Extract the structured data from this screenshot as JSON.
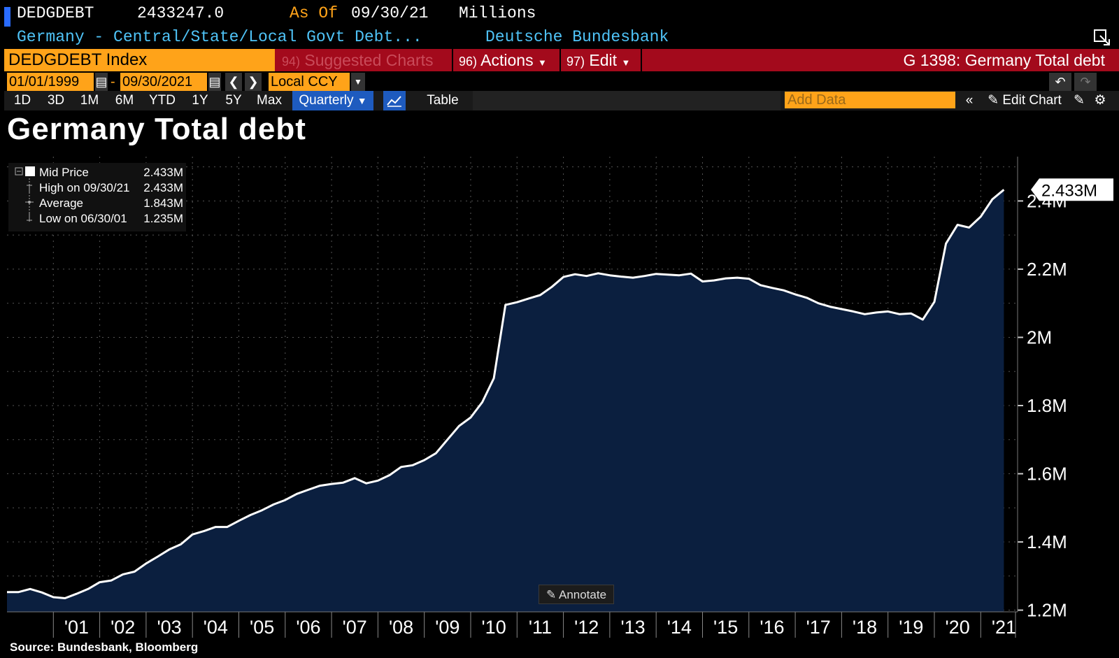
{
  "header": {
    "ticker": "DEDGDEBT",
    "last_value": "2433247.0",
    "as_of_label": "As Of",
    "as_of_date": "09/30/21",
    "units": "Millions",
    "description": "Germany - Central/State/Local Govt Debt...",
    "source_name": "Deutsche Bundesbank"
  },
  "toolbar": {
    "security": "DEDGDEBT Index",
    "suggested_num": "94)",
    "suggested_label": "Suggested Charts",
    "actions_num": "96)",
    "actions_label": "Actions",
    "edit_num": "97)",
    "edit_label": "Edit",
    "chart_id": "G 1398: Germany Total debt",
    "start_date": "01/01/1999",
    "end_date": "09/30/2021",
    "date_dash": "-",
    "currency": "Local CCY",
    "periods": [
      "1D",
      "3D",
      "1M",
      "6M",
      "YTD",
      "1Y",
      "5Y",
      "Max"
    ],
    "frequency": "Quarterly",
    "table_label": "Table",
    "add_data_placeholder": "Add Data",
    "edit_chart_label": "Edit Chart"
  },
  "colors": {
    "accent_orange": "#ffa319",
    "bar_red": "#a30a1c",
    "area_fill": "#0b1f3f",
    "line": "#ffffff",
    "header_cyan": "#4fc3f7"
  },
  "legend": {
    "rows": [
      {
        "label": "Mid Price",
        "value": "2.433M"
      },
      {
        "label": "High on 09/30/21",
        "value": "2.433M"
      },
      {
        "label": "Average",
        "value": "1.843M"
      },
      {
        "label": "Low on 06/30/01",
        "value": "1.235M"
      }
    ]
  },
  "annotate_label": "Annotate",
  "source_text": "Source: Bundesbank, Bloomberg",
  "chart_data": {
    "type": "area",
    "title": "Germany Total debt",
    "last_label": "2.433M",
    "x_tick_labels": [
      "'01",
      "'02",
      "'03",
      "'04",
      "'05",
      "'06",
      "'07",
      "'08",
      "'09",
      "'10",
      "'11",
      "'12",
      "'13",
      "'14",
      "'15",
      "'16",
      "'17",
      "'18",
      "'19",
      "'20",
      "'21"
    ],
    "y_tick_labels": [
      "1.2M",
      "1.4M",
      "1.6M",
      "1.8M",
      "2M",
      "2.2M",
      "2.4M"
    ],
    "y_ticks": [
      1.2,
      1.4,
      1.6,
      1.8,
      2.0,
      2.2,
      2.4
    ],
    "ylim": [
      1.195,
      2.53
    ],
    "xlim": [
      2000.0,
      2021.75
    ],
    "grid": true,
    "legend_placement": "top-left",
    "series": [
      {
        "units": "millions (M)",
        "x": [
          2000.0,
          2000.25,
          2000.5,
          2000.75,
          2001.0,
          2001.25,
          2001.5,
          2001.75,
          2002.0,
          2002.25,
          2002.5,
          2002.75,
          2003.0,
          2003.25,
          2003.5,
          2003.75,
          2004.0,
          2004.25,
          2004.5,
          2004.75,
          2005.0,
          2005.25,
          2005.5,
          2005.75,
          2006.0,
          2006.25,
          2006.5,
          2006.75,
          2007.0,
          2007.25,
          2007.5,
          2007.75,
          2008.0,
          2008.25,
          2008.5,
          2008.75,
          2009.0,
          2009.25,
          2009.5,
          2009.75,
          2010.0,
          2010.25,
          2010.5,
          2010.75,
          2011.0,
          2011.25,
          2011.5,
          2011.75,
          2012.0,
          2012.25,
          2012.5,
          2012.75,
          2013.0,
          2013.25,
          2013.5,
          2013.75,
          2014.0,
          2014.25,
          2014.5,
          2014.75,
          2015.0,
          2015.25,
          2015.5,
          2015.75,
          2016.0,
          2016.25,
          2016.5,
          2016.75,
          2017.0,
          2017.25,
          2017.5,
          2017.75,
          2018.0,
          2018.25,
          2018.5,
          2018.75,
          2019.0,
          2019.25,
          2019.5,
          2019.75,
          2020.0,
          2020.25,
          2020.5,
          2020.75,
          2021.0,
          2021.25,
          2021.5
        ],
        "values": [
          1.253,
          1.253,
          1.262,
          1.252,
          1.238,
          1.235,
          1.248,
          1.262,
          1.282,
          1.287,
          1.305,
          1.313,
          1.337,
          1.357,
          1.378,
          1.393,
          1.422,
          1.432,
          1.444,
          1.444,
          1.462,
          1.479,
          1.493,
          1.51,
          1.523,
          1.541,
          1.553,
          1.565,
          1.57,
          1.574,
          1.587,
          1.572,
          1.58,
          1.596,
          1.62,
          1.625,
          1.64,
          1.66,
          1.7,
          1.74,
          1.765,
          1.81,
          1.88,
          2.095,
          2.103,
          2.114,
          2.124,
          2.148,
          2.177,
          2.185,
          2.18,
          2.188,
          2.182,
          2.178,
          2.175,
          2.18,
          2.186,
          2.184,
          2.182,
          2.187,
          2.164,
          2.167,
          2.173,
          2.175,
          2.172,
          2.153,
          2.145,
          2.138,
          2.126,
          2.116,
          2.1,
          2.09,
          2.083,
          2.076,
          2.068,
          2.073,
          2.076,
          2.068,
          2.07,
          2.052,
          2.104,
          2.275,
          2.33,
          2.322,
          2.354,
          2.405,
          2.433
        ]
      }
    ]
  }
}
